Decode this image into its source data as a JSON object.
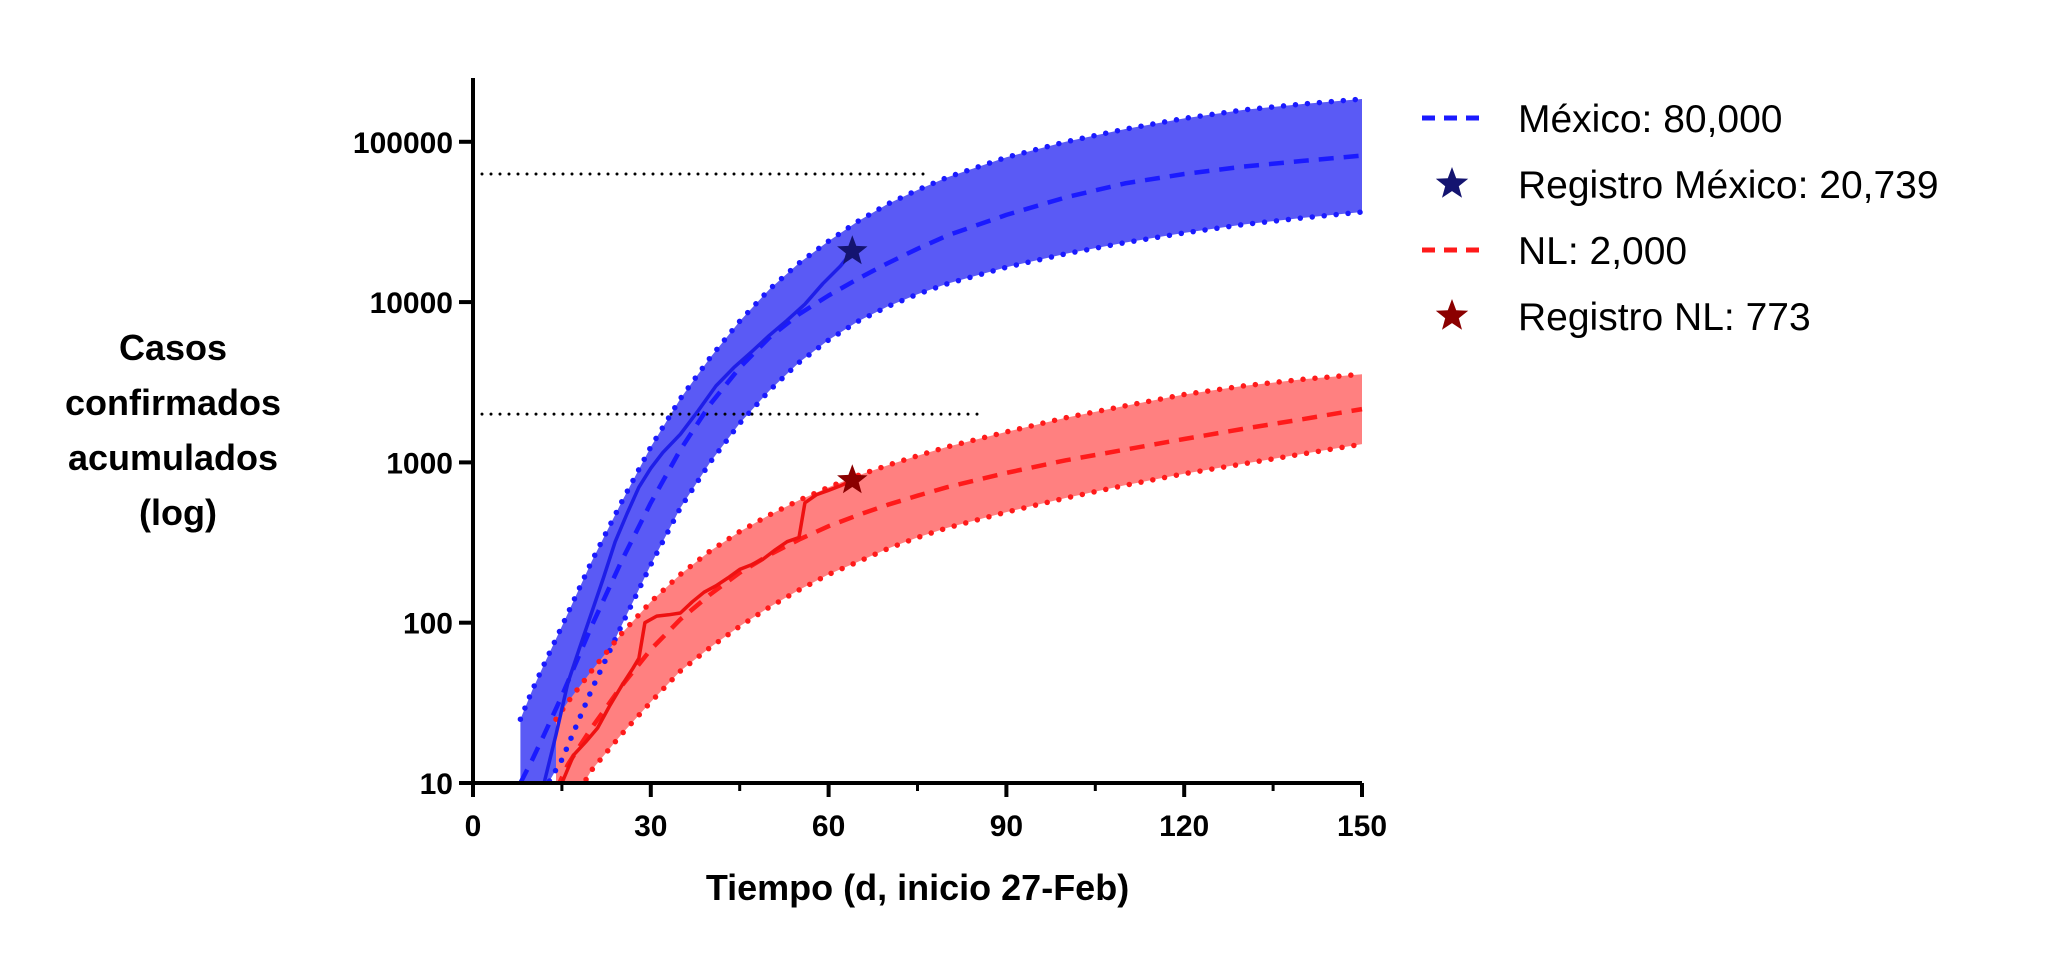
{
  "chart_data": {
    "type": "line",
    "xlabel": "Tiempo (d, inicio 27-Feb)",
    "ylabel_lines": [
      "Casos",
      "confirmados",
      "acumulados",
      "(log)"
    ],
    "xlim": [
      0,
      150
    ],
    "ylim": [
      10,
      250000
    ],
    "yscale": "log",
    "x_ticks": [
      0,
      30,
      60,
      90,
      120,
      150
    ],
    "x_tick_labels": [
      "0",
      "30",
      "60",
      "90",
      "120",
      "150"
    ],
    "y_ticks": [
      10,
      100,
      1000,
      10000,
      100000
    ],
    "y_tick_labels": [
      "10",
      "100",
      "1000",
      "10000",
      "100000"
    ],
    "grid": false,
    "legend_position": "right",
    "reference_lines": [
      {
        "y": 63000,
        "x_start": 0,
        "x_end": 76,
        "style": "dotted",
        "color": "#000000"
      },
      {
        "y": 2000,
        "x_start": 0,
        "x_end": 86,
        "style": "dotted",
        "color": "#000000"
      }
    ],
    "series": [
      {
        "name": "México: 80,000",
        "style": "dashed",
        "color": "#1a1aff",
        "band_color": "#5a5af5",
        "x": [
          8,
          10,
          12,
          15,
          20,
          25,
          30,
          35,
          40,
          45,
          50,
          55,
          60,
          65,
          70,
          75,
          80,
          90,
          100,
          110,
          120,
          130,
          140,
          150
        ],
        "y": [
          10,
          14,
          20,
          35,
          95,
          240,
          560,
          1200,
          2300,
          3900,
          6000,
          8400,
          11000,
          14000,
          17500,
          21500,
          26000,
          35000,
          45000,
          55000,
          63000,
          70000,
          76000,
          82000
        ],
        "upper": [
          25,
          38,
          55,
          95,
          240,
          560,
          1250,
          2500,
          4500,
          7600,
          12000,
          17500,
          24000,
          32000,
          41000,
          50000,
          60000,
          80000,
          100000,
          120000,
          140000,
          158000,
          172000,
          185000
        ],
        "lower": [
          4,
          6,
          9,
          14,
          38,
          95,
          230,
          520,
          1000,
          1750,
          2800,
          4200,
          5800,
          7600,
          9400,
          11200,
          13000,
          16500,
          20000,
          23500,
          27000,
          30500,
          33500,
          36500
        ]
      },
      {
        "name": "Registro México: 20,739",
        "style": "solid",
        "color": "#1e1ee8",
        "marker": "star",
        "marker_color": "#141470",
        "x": [
          12,
          14,
          16,
          18,
          20,
          22,
          24,
          26,
          28,
          30,
          32,
          35,
          38,
          41,
          44,
          47,
          50,
          53,
          56,
          59,
          62,
          64
        ],
        "y": [
          10,
          20,
          42,
          70,
          115,
          190,
          320,
          480,
          700,
          920,
          1150,
          1500,
          2100,
          3000,
          3900,
          4900,
          6200,
          7700,
          9700,
          13000,
          16800,
          20739
        ]
      },
      {
        "name": "NL: 2,000",
        "style": "dashed",
        "color": "#ff1a1a",
        "band_color": "#ff8080",
        "x": [
          14,
          16,
          18,
          20,
          25,
          30,
          35,
          40,
          45,
          50,
          55,
          60,
          65,
          70,
          75,
          80,
          90,
          100,
          110,
          120,
          130,
          140,
          150
        ],
        "y": [
          9,
          13,
          17,
          22,
          40,
          68,
          105,
          150,
          205,
          265,
          330,
          400,
          470,
          545,
          620,
          700,
          860,
          1030,
          1200,
          1400,
          1620,
          1860,
          2150
        ],
        "upper": [
          25,
          32,
          40,
          50,
          85,
          135,
          200,
          280,
          370,
          470,
          580,
          700,
          830,
          960,
          1100,
          1250,
          1550,
          1900,
          2250,
          2650,
          3000,
          3300,
          3550
        ],
        "lower": [
          5,
          7,
          9,
          12,
          20,
          32,
          50,
          70,
          95,
          125,
          160,
          200,
          240,
          290,
          340,
          390,
          490,
          600,
          720,
          850,
          980,
          1130,
          1300
        ]
      },
      {
        "name": "Registro NL: 773",
        "style": "solid",
        "color": "#ee1111",
        "marker": "star",
        "marker_color": "#8b0000",
        "x": [
          15,
          17,
          19,
          21,
          23,
          25,
          27,
          28,
          29,
          31,
          33,
          35,
          37,
          39,
          41,
          43,
          45,
          47,
          49,
          51,
          53,
          55,
          56,
          58,
          60,
          62,
          64
        ],
        "y": [
          10,
          15,
          18,
          22,
          30,
          40,
          52,
          60,
          100,
          110,
          112,
          115,
          135,
          155,
          170,
          190,
          215,
          230,
          250,
          285,
          320,
          340,
          560,
          630,
          670,
          715,
          773
        ]
      }
    ]
  }
}
